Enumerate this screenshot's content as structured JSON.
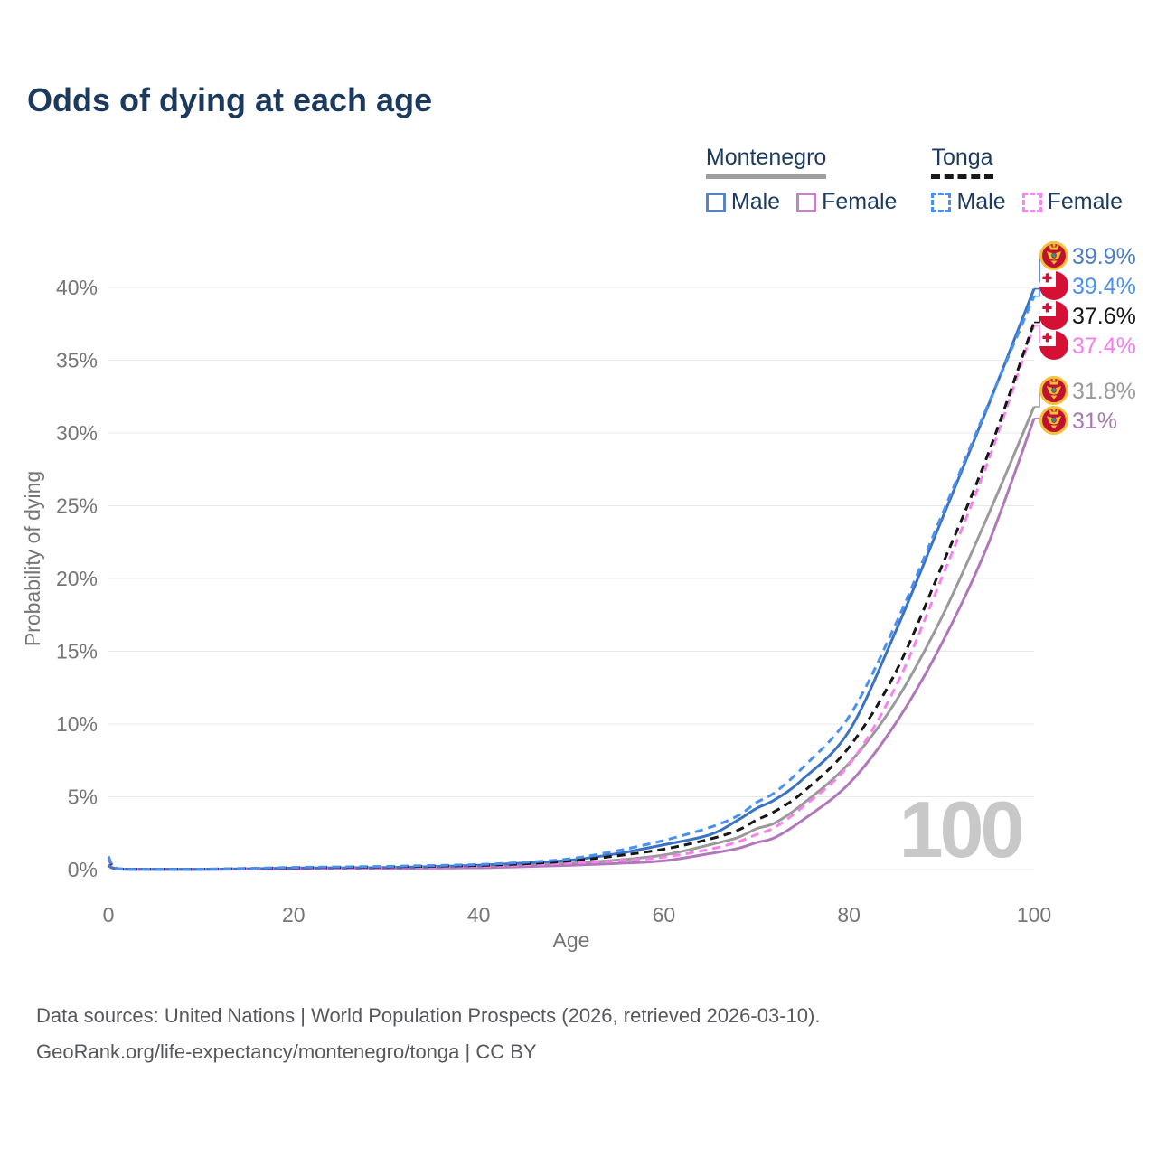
{
  "title": "Odds of dying at each age",
  "legend": {
    "groups": [
      {
        "title": "Montenegro",
        "underline": {
          "style": "solid",
          "color": "#9e9e9e"
        },
        "items": [
          {
            "label": "Male",
            "color": "#5b84c0",
            "line_style": "solid"
          },
          {
            "label": "Female",
            "color": "#bf86c4",
            "line_style": "solid"
          }
        ]
      },
      {
        "title": "Tonga",
        "underline": {
          "style": "dashed",
          "color": "#1a1a1a"
        },
        "items": [
          {
            "label": "Male",
            "color": "#4a90ee",
            "line_style": "dashed"
          },
          {
            "label": "Female",
            "color": "#fb86f3",
            "line_style": "dashed"
          }
        ]
      }
    ]
  },
  "chart_data": {
    "type": "line",
    "title": "Odds of dying at each age",
    "xlabel": "Age",
    "ylabel": "Probability of dying",
    "x_ticks": [
      0,
      20,
      40,
      60,
      80,
      100
    ],
    "y_ticks_percent": [
      0,
      5,
      10,
      15,
      20,
      25,
      30,
      35,
      40
    ],
    "xlim": [
      0,
      100
    ],
    "ylim_percent": [
      0,
      42
    ],
    "grid": "horizontal-only",
    "legend_position": "top-right",
    "watermark": "100",
    "ages": [
      0,
      1,
      5,
      10,
      15,
      20,
      25,
      30,
      35,
      40,
      45,
      50,
      55,
      60,
      65,
      68,
      70,
      72,
      75,
      80,
      85,
      90,
      95,
      100
    ],
    "series": [
      {
        "name": "Montenegro Both sexes",
        "country": "Montenegro",
        "sex": "both",
        "line_style": "solid",
        "color": "#9a9a9a",
        "label_color": "#9a9a9a",
        "end_label": "31.8%",
        "flag": "montenegro",
        "values": [
          0.28,
          0.045,
          0.018,
          0.018,
          0.04,
          0.07,
          0.09,
          0.11,
          0.15,
          0.2,
          0.3,
          0.45,
          0.65,
          1.0,
          1.7,
          2.2,
          2.8,
          3.2,
          4.5,
          7.3,
          11.5,
          17.3,
          24.3,
          31.8
        ]
      },
      {
        "name": "Montenegro Female",
        "country": "Montenegro",
        "sex": "female",
        "line_style": "solid",
        "color": "#b078ba",
        "label_color": "#a678b0",
        "end_label": "31%",
        "flag": "montenegro",
        "values": [
          0.25,
          0.04,
          0.015,
          0.015,
          0.03,
          0.05,
          0.06,
          0.08,
          0.11,
          0.13,
          0.2,
          0.3,
          0.42,
          0.6,
          1.1,
          1.45,
          1.85,
          2.2,
          3.4,
          5.9,
          10.0,
          15.5,
          22.3,
          31.0
        ]
      },
      {
        "name": "Montenegro Male",
        "country": "Montenegro",
        "sex": "male",
        "line_style": "solid",
        "color": "#3b72c2",
        "label_color": "#4d7fc4",
        "end_label": "39.9%",
        "flag": "montenegro",
        "values": [
          0.3,
          0.05,
          0.02,
          0.02,
          0.05,
          0.1,
          0.12,
          0.14,
          0.2,
          0.3,
          0.45,
          0.65,
          1.1,
          1.7,
          2.4,
          3.4,
          4.2,
          4.8,
          6.2,
          9.5,
          16.3,
          24.0,
          31.8,
          39.9
        ]
      },
      {
        "name": "Tonga Female",
        "country": "Tonga",
        "sex": "female",
        "line_style": "dashed",
        "color": "#f980ef",
        "label_color": "#f87cf0",
        "end_label": "37.4%",
        "flag": "tonga",
        "values": [
          0.75,
          0.05,
          0.025,
          0.025,
          0.05,
          0.08,
          0.1,
          0.13,
          0.17,
          0.22,
          0.32,
          0.45,
          0.6,
          0.85,
          1.4,
          1.9,
          2.4,
          2.9,
          4.3,
          7.2,
          12.5,
          20.0,
          28.0,
          37.4
        ]
      },
      {
        "name": "Tonga Both sexes",
        "country": "Tonga",
        "sex": "both",
        "line_style": "dashed",
        "color": "#161616",
        "label_color": "#161616",
        "end_label": "37.6%",
        "flag": "tonga",
        "values": [
          0.83,
          0.055,
          0.027,
          0.027,
          0.07,
          0.12,
          0.15,
          0.18,
          0.23,
          0.28,
          0.4,
          0.6,
          0.95,
          1.4,
          2.1,
          2.7,
          3.4,
          4.0,
          5.3,
          8.4,
          13.5,
          20.8,
          28.5,
          37.6
        ]
      },
      {
        "name": "Tonga Male",
        "country": "Tonga",
        "sex": "male",
        "line_style": "dashed",
        "color": "#4a90ee",
        "label_color": "#4b90ee",
        "end_label": "39.4%",
        "flag": "tonga",
        "values": [
          0.9,
          0.06,
          0.03,
          0.03,
          0.08,
          0.15,
          0.18,
          0.22,
          0.28,
          0.35,
          0.5,
          0.75,
          1.3,
          2.0,
          2.9,
          3.7,
          4.6,
          5.3,
          7.0,
          10.5,
          16.8,
          24.3,
          31.9,
          39.4
        ]
      }
    ],
    "flag_colors": {
      "montenegro_field": "#c0122f",
      "montenegro_ring": "#f3c23a",
      "tonga_field": "#d41034",
      "tonga_canton": "#ffffff"
    }
  },
  "footer": {
    "line1": "Data sources: United Nations | World Population Prospects (2026, retrieved 2026-03-10).",
    "line2": "GeoRank.org/life-expectancy/montenegro/tonga | CC BY"
  }
}
